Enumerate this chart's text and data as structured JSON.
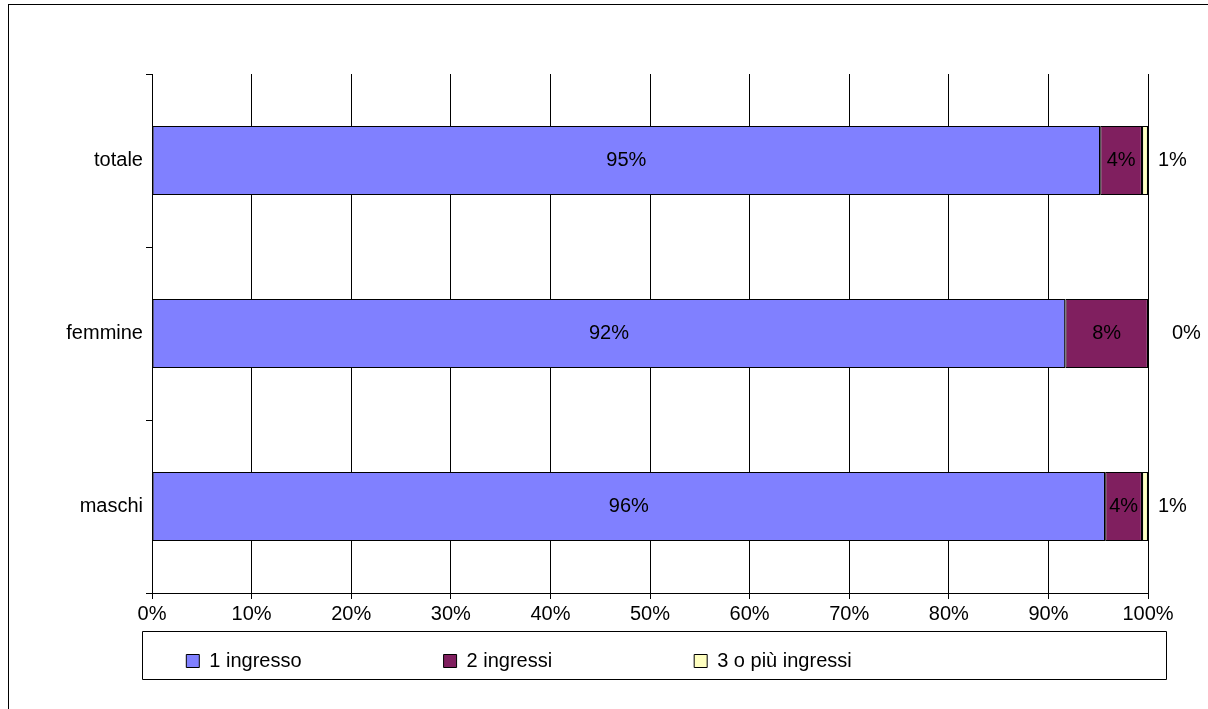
{
  "chart_data": {
    "type": "bar",
    "orientation": "horizontal",
    "stacked": true,
    "categories": [
      "totale",
      "femmine",
      "maschi"
    ],
    "series": [
      {
        "name": "1 ingresso",
        "color": "#8080ff",
        "values": [
          95.2,
          91.7,
          95.7
        ],
        "value_labels": [
          "95%",
          "92%",
          "96%"
        ]
      },
      {
        "name": "2 ingressi",
        "color": "#801f5f",
        "values": [
          4.2,
          8.3,
          3.7
        ],
        "value_labels": [
          "4%",
          "8%",
          "4%"
        ]
      },
      {
        "name": "3 o più ingressi",
        "color": "#ffffc0",
        "values": [
          0.6,
          0,
          0.6
        ],
        "value_labels": [
          "1%",
          "0%",
          "1%"
        ]
      }
    ],
    "xlim": [
      0,
      100
    ],
    "xticks": [
      {
        "value": 0,
        "label": "0%"
      },
      {
        "value": 10,
        "label": "10%"
      },
      {
        "value": 20,
        "label": "20%"
      },
      {
        "value": 30,
        "label": "30%"
      },
      {
        "value": 40,
        "label": "40%"
      },
      {
        "value": 50,
        "label": "50%"
      },
      {
        "value": 60,
        "label": "60%"
      },
      {
        "value": 70,
        "label": "70%"
      },
      {
        "value": 80,
        "label": "80%"
      },
      {
        "value": 90,
        "label": "90%"
      },
      {
        "value": 100,
        "label": "100%"
      }
    ],
    "grid": "x",
    "legend": "bottom"
  }
}
